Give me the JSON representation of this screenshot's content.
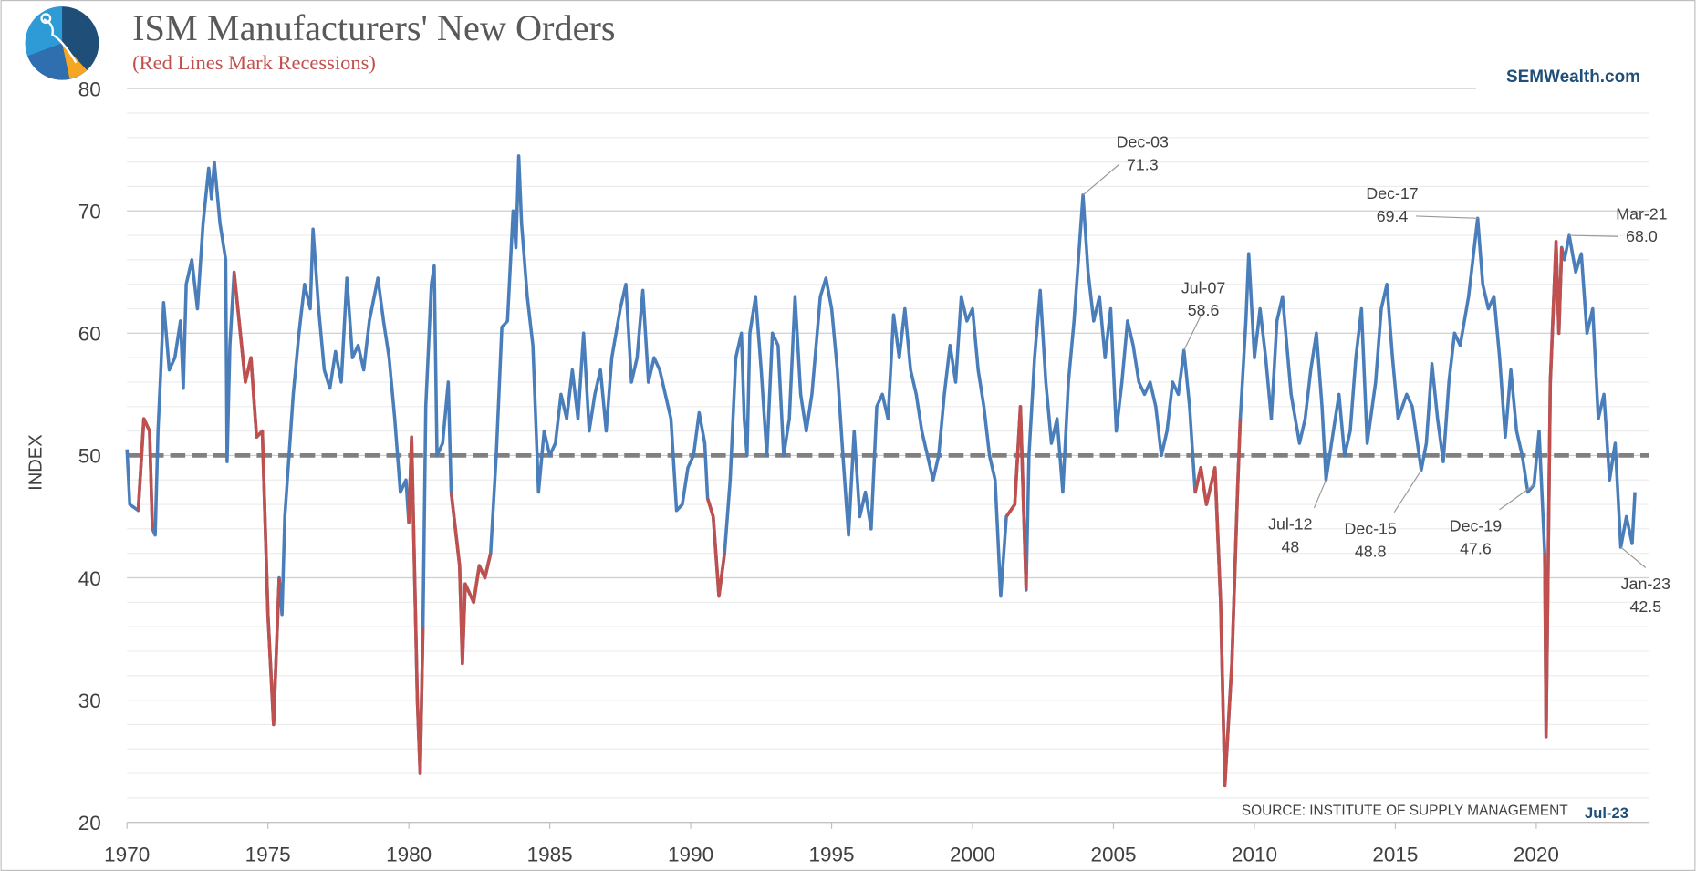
{
  "chart_data": {
    "type": "line",
    "title": "ISM Manufacturers' New Orders",
    "subtitle": "(Red Lines Mark Recessions)",
    "brand": "SEMWealth.com",
    "source": "SOURCE:  INSTITUTE OF SUPPLY MANAGEMENT",
    "as_of": "Jul-23",
    "y_label": "INDEX",
    "xlim": [
      1970,
      2024
    ],
    "xticks": [
      1970,
      1975,
      1980,
      1985,
      1990,
      1995,
      2000,
      2005,
      2010,
      2015,
      2020
    ],
    "ylim": [
      20,
      80
    ],
    "yticks": [
      20,
      30,
      40,
      50,
      60,
      70,
      80
    ],
    "grid": true,
    "minor_grid_step": 2,
    "reference_line": 50,
    "series": [
      {
        "color": "#4a7ebb",
        "x": [
          1970.0,
          1970.1,
          1970.4,
          1970.6,
          1970.8,
          1970.9,
          1971.0,
          1971.1,
          1971.2,
          1971.3,
          1971.5,
          1971.7,
          1971.9,
          1972.0,
          1972.1,
          1972.3,
          1972.5,
          1972.7,
          1972.9,
          1973.0,
          1973.1,
          1973.3,
          1973.5,
          1973.55,
          1973.65,
          1973.8,
          1974.2,
          1974.4,
          1974.6,
          1974.8,
          1975.0,
          1975.2,
          1975.4,
          1975.5,
          1975.6,
          1975.9,
          1976.1,
          1976.3,
          1976.5,
          1976.6,
          1976.8,
          1977.0,
          1977.2,
          1977.4,
          1977.6,
          1977.8,
          1978.0,
          1978.2,
          1978.4,
          1978.6,
          1978.9,
          1979.1,
          1979.3,
          1979.5,
          1979.7,
          1979.9,
          1980.0,
          1980.1,
          1980.3,
          1980.4,
          1980.5,
          1980.6,
          1980.8,
          1980.9,
          1981.0,
          1981.2,
          1981.4,
          1981.5,
          1981.8,
          1981.9,
          1982.0,
          1982.3,
          1982.5,
          1982.7,
          1982.9,
          1983.1,
          1983.3,
          1983.5,
          1983.7,
          1983.8,
          1983.9,
          1984.0,
          1984.2,
          1984.4,
          1984.6,
          1984.8,
          1985.0,
          1985.2,
          1985.4,
          1985.6,
          1985.8,
          1986.0,
          1986.2,
          1986.4,
          1986.6,
          1986.8,
          1987.0,
          1987.2,
          1987.5,
          1987.7,
          1987.9,
          1988.1,
          1988.3,
          1988.5,
          1988.7,
          1988.9,
          1989.1,
          1989.3,
          1989.5,
          1989.7,
          1989.9,
          1990.1,
          1990.3,
          1990.5,
          1990.6,
          1990.8,
          1991.0,
          1991.2,
          1991.4,
          1991.6,
          1991.8,
          1991.9,
          1992.0,
          1992.1,
          1992.3,
          1992.5,
          1992.7,
          1992.9,
          1993.1,
          1993.3,
          1993.5,
          1993.7,
          1993.9,
          1994.1,
          1994.3,
          1994.6,
          1994.8,
          1995.0,
          1995.2,
          1995.4,
          1995.6,
          1995.8,
          1996.0,
          1996.2,
          1996.4,
          1996.6,
          1996.8,
          1997.0,
          1997.2,
          1997.4,
          1997.6,
          1997.8,
          1998.0,
          1998.2,
          1998.4,
          1998.6,
          1998.8,
          1999.0,
          1999.2,
          1999.4,
          1999.6,
          1999.8,
          2000.0,
          2000.2,
          2000.4,
          2000.6,
          2000.8,
          2001.0,
          2001.2,
          2001.5,
          2001.7,
          2001.9,
          2002.0,
          2002.2,
          2002.4,
          2002.6,
          2002.8,
          2003.0,
          2003.2,
          2003.4,
          2003.6,
          2003.92,
          2004.1,
          2004.3,
          2004.5,
          2004.7,
          2004.9,
          2005.1,
          2005.3,
          2005.5,
          2005.7,
          2005.9,
          2006.1,
          2006.3,
          2006.5,
          2006.7,
          2006.9,
          2007.1,
          2007.3,
          2007.5,
          2007.7,
          2007.9,
          2008.1,
          2008.3,
          2008.6,
          2008.8,
          2008.95,
          2009.2,
          2009.4,
          2009.5,
          2009.7,
          2009.8,
          2010.0,
          2010.2,
          2010.4,
          2010.6,
          2010.8,
          2011.0,
          2011.3,
          2011.6,
          2011.8,
          2012.0,
          2012.2,
          2012.4,
          2012.54,
          2012.8,
          2013.0,
          2013.2,
          2013.4,
          2013.6,
          2013.8,
          2014.0,
          2014.3,
          2014.5,
          2014.7,
          2014.9,
          2015.1,
          2015.4,
          2015.6,
          2015.92,
          2016.1,
          2016.3,
          2016.5,
          2016.7,
          2016.9,
          2017.1,
          2017.3,
          2017.6,
          2017.92,
          2018.1,
          2018.3,
          2018.5,
          2018.7,
          2018.9,
          2019.1,
          2019.3,
          2019.5,
          2019.7,
          2019.92,
          2020.1,
          2020.3,
          2020.35,
          2020.5,
          2020.7,
          2020.8,
          2020.9,
          2021.0,
          2021.17,
          2021.4,
          2021.6,
          2021.8,
          2022.0,
          2022.2,
          2022.4,
          2022.6,
          2022.8,
          2023.0,
          2023.2,
          2023.4,
          2023.5
        ],
        "values": [
          50.5,
          46,
          45.5,
          53,
          52,
          44,
          43.5,
          52,
          57,
          62.5,
          57,
          58,
          61,
          55.5,
          64,
          66,
          62,
          69,
          73.5,
          71,
          74,
          69,
          66,
          49.5,
          59,
          65,
          56,
          58,
          51.5,
          52,
          37,
          28,
          40,
          37,
          45,
          55,
          60,
          64,
          62,
          68.5,
          62,
          57,
          55.5,
          58.5,
          56,
          64.5,
          58,
          59,
          57,
          61,
          64.5,
          61,
          58,
          53,
          47,
          48,
          44.5,
          51.5,
          30,
          24,
          36,
          54,
          64,
          65.5,
          50,
          51,
          56,
          47,
          41,
          33,
          39.5,
          38,
          41,
          40,
          42,
          50,
          60.5,
          61,
          70,
          67,
          74.5,
          69,
          63,
          59,
          47,
          52,
          50,
          51,
          55,
          53,
          57,
          53,
          60,
          52,
          55,
          57,
          52,
          58,
          62,
          64,
          56,
          58,
          63.5,
          56,
          58,
          57,
          55,
          53,
          45.5,
          46,
          49,
          50,
          53.5,
          51,
          46.5,
          45,
          38.5,
          42,
          48,
          58,
          60,
          53,
          50,
          60,
          63,
          57,
          50,
          60,
          59,
          50,
          53,
          63,
          55,
          52,
          55,
          63,
          64.5,
          62,
          57,
          50,
          43.5,
          52,
          45,
          47,
          44,
          54,
          55,
          53,
          61.5,
          58,
          62,
          57,
          55,
          52,
          50,
          48,
          50,
          55,
          59,
          56,
          63,
          61,
          62,
          57,
          54,
          50,
          48,
          38.5,
          45,
          46,
          54,
          39,
          50,
          58,
          63.5,
          56,
          51,
          53,
          47,
          56,
          61,
          71.3,
          65,
          61,
          63,
          58,
          62,
          52,
          56,
          61,
          59,
          56,
          55,
          56,
          54,
          50,
          52,
          56,
          55,
          58.6,
          54,
          47,
          49,
          46,
          49,
          38,
          23,
          33,
          47,
          53,
          61,
          66.5,
          58,
          62,
          58,
          53,
          61,
          63,
          55,
          51,
          53,
          57,
          60,
          54,
          48,
          52,
          55,
          50,
          52,
          58,
          62,
          51,
          56,
          62,
          64,
          58,
          53,
          55,
          54,
          48.8,
          51,
          57.5,
          53,
          49.5,
          56,
          60,
          59,
          63,
          69.4,
          64,
          62,
          63,
          58,
          51.5,
          57,
          52,
          50,
          47,
          47.6,
          52,
          42,
          27,
          56,
          67.5,
          60,
          67,
          66,
          68,
          65,
          66.5,
          60,
          62,
          53,
          55,
          48,
          51,
          42.5,
          45,
          42.8,
          47
        ]
      },
      {
        "color": "#c0504d",
        "x": [
          1970.4,
          1970.6,
          1970.8,
          1970.9
        ],
        "values": [
          45.5,
          53,
          52,
          44
        ]
      },
      {
        "color": "#c0504d",
        "x": [
          1973.8,
          1974.2,
          1974.4,
          1974.6,
          1974.8,
          1975.0,
          1975.2,
          1975.4
        ],
        "values": [
          65,
          56,
          58,
          51.5,
          52,
          37,
          28,
          40
        ]
      },
      {
        "color": "#c0504d",
        "x": [
          1980.0,
          1980.1,
          1980.3,
          1980.4,
          1980.5
        ],
        "values": [
          44.5,
          51.5,
          30,
          24,
          36
        ]
      },
      {
        "color": "#c0504d",
        "x": [
          1981.5,
          1981.8,
          1981.9,
          1982.0,
          1982.3,
          1982.5,
          1982.7,
          1982.9
        ],
        "values": [
          47,
          41,
          33,
          39.5,
          38,
          41,
          40,
          42
        ]
      },
      {
        "color": "#c0504d",
        "x": [
          1990.6,
          1990.8,
          1991.0,
          1991.2
        ],
        "values": [
          46.5,
          45,
          38.5,
          42
        ]
      },
      {
        "color": "#c0504d",
        "x": [
          2001.2,
          2001.5,
          2001.7,
          2001.9
        ],
        "values": [
          45,
          46,
          54,
          39
        ]
      },
      {
        "color": "#c0504d",
        "x": [
          2007.9,
          2008.1,
          2008.3,
          2008.6,
          2008.8,
          2008.95,
          2009.2,
          2009.4,
          2009.5
        ],
        "values": [
          47,
          49,
          46,
          49,
          38,
          23,
          33,
          47,
          53
        ]
      },
      {
        "color": "#c0504d",
        "x": [
          2020.3,
          2020.35,
          2020.5,
          2020.7,
          2020.8,
          2020.9
        ],
        "values": [
          42,
          27,
          56,
          67.5,
          60,
          67
        ]
      }
    ],
    "annotations": [
      {
        "label": "Dec-03",
        "x": 2003.92,
        "value": 71.3
      },
      {
        "label": "Jul-07",
        "x": 2007.5,
        "value": 58.6
      },
      {
        "label": "Dec-17",
        "x": 2017.92,
        "value": 69.4
      },
      {
        "label": "Mar-21",
        "x": 2021.17,
        "value": 68,
        "value_label": "68.0"
      },
      {
        "label": "Jul-12",
        "x": 2012.54,
        "value": 48
      },
      {
        "label": "Dec-15",
        "x": 2015.92,
        "value": 48.8
      },
      {
        "label": "Dec-19",
        "x": 2019.92,
        "value": 47.6
      },
      {
        "label": "Jan-23",
        "x": 2023.0,
        "value": 42.5
      }
    ]
  }
}
